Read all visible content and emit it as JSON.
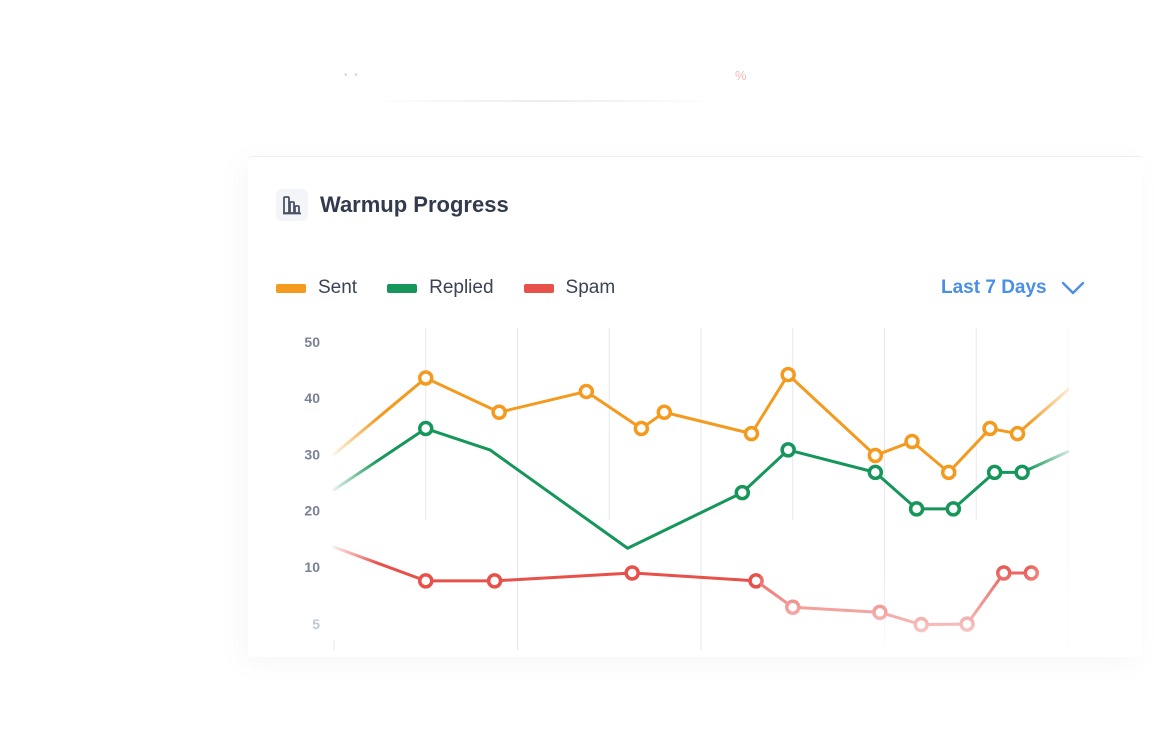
{
  "ghost": {
    "percent": "%"
  },
  "header": {
    "title": "Warmup Progress",
    "icon": "bar-chart-icon"
  },
  "legend": [
    {
      "label": "Sent",
      "color": "#f39a1f"
    },
    {
      "label": "Replied",
      "color": "#16965a"
    },
    {
      "label": "Spam",
      "color": "#e8504a"
    }
  ],
  "range": {
    "label": "Last 7 Days",
    "icon": "chevron-down-icon"
  },
  "chart_data": {
    "type": "line",
    "ylim": [
      5,
      50
    ],
    "yticks": [
      50,
      40,
      30,
      20,
      10,
      5
    ],
    "grid": "vertical",
    "legend": "top-left",
    "series": [
      {
        "name": "Sent",
        "color": "#f39a1f",
        "points": [
          {
            "x": 0,
            "y": 30,
            "marker": false
          },
          {
            "x": 1,
            "y": 43.6,
            "marker": true
          },
          {
            "x": 1.8,
            "y": 37.5,
            "marker": true
          },
          {
            "x": 2.75,
            "y": 41.2,
            "marker": true
          },
          {
            "x": 3.35,
            "y": 34.6,
            "marker": true
          },
          {
            "x": 3.6,
            "y": 37.5,
            "marker": true
          },
          {
            "x": 4.55,
            "y": 33.7,
            "marker": true
          },
          {
            "x": 4.95,
            "y": 44.2,
            "marker": true
          },
          {
            "x": 5.9,
            "y": 29.8,
            "marker": true
          },
          {
            "x": 6.3,
            "y": 32.3,
            "marker": true
          },
          {
            "x": 6.7,
            "y": 26.8,
            "marker": true
          },
          {
            "x": 7.15,
            "y": 34.6,
            "marker": true
          },
          {
            "x": 7.45,
            "y": 33.7,
            "marker": true
          },
          {
            "x": 8.0,
            "y": 41.5,
            "marker": false
          }
        ]
      },
      {
        "name": "Replied",
        "color": "#16965a",
        "points": [
          {
            "x": 0,
            "y": 23.7,
            "marker": false
          },
          {
            "x": 1,
            "y": 34.6,
            "marker": true
          },
          {
            "x": 1.7,
            "y": 30.8,
            "marker": false
          },
          {
            "x": 3.2,
            "y": 13.3,
            "marker": false
          },
          {
            "x": 4.45,
            "y": 23.2,
            "marker": true
          },
          {
            "x": 4.95,
            "y": 30.8,
            "marker": true
          },
          {
            "x": 5.9,
            "y": 26.8,
            "marker": true
          },
          {
            "x": 6.35,
            "y": 20.3,
            "marker": true
          },
          {
            "x": 6.75,
            "y": 20.3,
            "marker": true
          },
          {
            "x": 7.2,
            "y": 26.8,
            "marker": true
          },
          {
            "x": 7.5,
            "y": 26.8,
            "marker": true
          },
          {
            "x": 8.0,
            "y": 30.5,
            "marker": false
          }
        ]
      },
      {
        "name": "Spam",
        "color": "#e8504a",
        "points": [
          {
            "x": 0,
            "y": 13.5,
            "marker": false
          },
          {
            "x": 1,
            "y": 7.5,
            "marker": true
          },
          {
            "x": 1.75,
            "y": 7.5,
            "marker": true
          },
          {
            "x": 3.25,
            "y": 8.9,
            "marker": true
          },
          {
            "x": 4.6,
            "y": 7.5,
            "marker": true
          },
          {
            "x": 5.0,
            "y": 2.8,
            "marker": true
          },
          {
            "x": 5.95,
            "y": 1.9,
            "marker": true
          },
          {
            "x": 6.4,
            "y": -0.3,
            "marker": true
          },
          {
            "x": 6.9,
            "y": -0.2,
            "marker": true
          },
          {
            "x": 7.3,
            "y": 8.9,
            "marker": true
          },
          {
            "x": 7.6,
            "y": 8.9,
            "marker": true
          }
        ]
      }
    ]
  }
}
